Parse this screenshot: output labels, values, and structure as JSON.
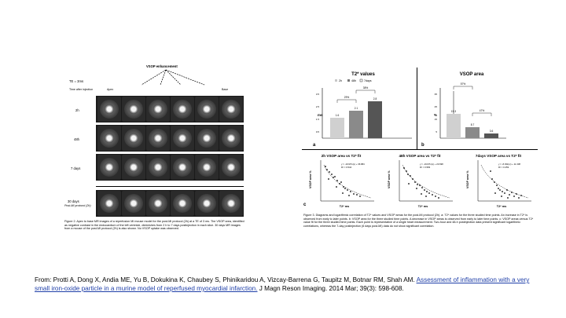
{
  "left_figure": {
    "header": "VSOP enhancement",
    "te_label": "TE = 3ms",
    "time_label": "Time after injection",
    "col_apex": "Apex",
    "col_base": "Base",
    "rows": [
      "2h",
      "48h",
      "7 days",
      "30 days"
    ],
    "row_30_sub": "Post-MI protocol (2h)",
    "caption": "Figure 2. Apex to base MR images of a reperfusion MI mouse model for the post-MI protocol (2h) at a TE of 3 ms. The VSOP area, identified as negative contrast in the endocardium of the left ventricle, diminishes from 2 h to 7 days postinjection in each slice. 30 days MR images from a mouse of the post-MI protocol (2h) is also shown. No VSOP uptake was observed."
  },
  "right_figure": {
    "panel_a": {
      "title": "T2* values",
      "legend": [
        "2h",
        "48h",
        "7days"
      ],
      "ylabel": "ms",
      "bar_labels": [
        "1.6",
        "2.1",
        "2.8"
      ],
      "sig_labels": [
        "29%",
        "38%"
      ],
      "letter": "a"
    },
    "panel_b": {
      "title": "VSOP area",
      "ylabel": "%",
      "bar_labels": [
        "19.3",
        "8.7",
        "3.6"
      ],
      "sig_labels": [
        "57%",
        "47%"
      ],
      "letter": "b"
    },
    "scatter": [
      {
        "title": "2h VSOP area vs T2* fit",
        "ylabel": "VSOP area %",
        "xlabel": "T2* ms",
        "equation": "y = -19.97ln(x) + 36.884",
        "r2": "R² = 0.544"
      },
      {
        "title": "48h VSOP area vs T2* fit",
        "ylabel": "VSOP area %",
        "xlabel": "T2* ms",
        "equation": "y = -19.67ln(x) + 23.698",
        "r2": "R² = 0.583"
      },
      {
        "title": "7days VSOP area vs T2* fit",
        "ylabel": "VSOP area %",
        "xlabel": "T2* ms",
        "equation": "y = -8.03ln(x) + 11.338",
        "r2": "R² = 0.259"
      }
    ],
    "panel_c_letter": "c",
    "caption": "Figure 3. Diagrams and logarithmic correlation of T2* values and VSOP areas for the post-MI protocol (2h). a: T2* values for the three studied time points. An increase in T2* is observed from early to later points. b: VSOP area for the three studied time points. A decrease in VSOP areas is observed from early to later time points. c: VSOP areas versus T2* value fit for the three studied time points. Each point is representative of a single heart measurement. Two-hour and 48-h postinjection data present significant logarithmic correlations, whereas the 7-day postinjection (6 days post-MI) data do not show significant correlation."
  },
  "credit": {
    "prefix": "From: Protti A, Dong X, Andia ME, Yu B, Dokukina K, Chaubey S, Phinikaridou A, Vizcay-Barrena G, Taupitz M, Botnar RM, Shah AM.",
    "link": "Assessment of inflammation with a very small iron-oxide particle in a murine model of reperfused myocardial infarction.",
    "suffix": "J Magn Reson Imaging. 2014 Mar; 39(3): 598-608."
  }
}
